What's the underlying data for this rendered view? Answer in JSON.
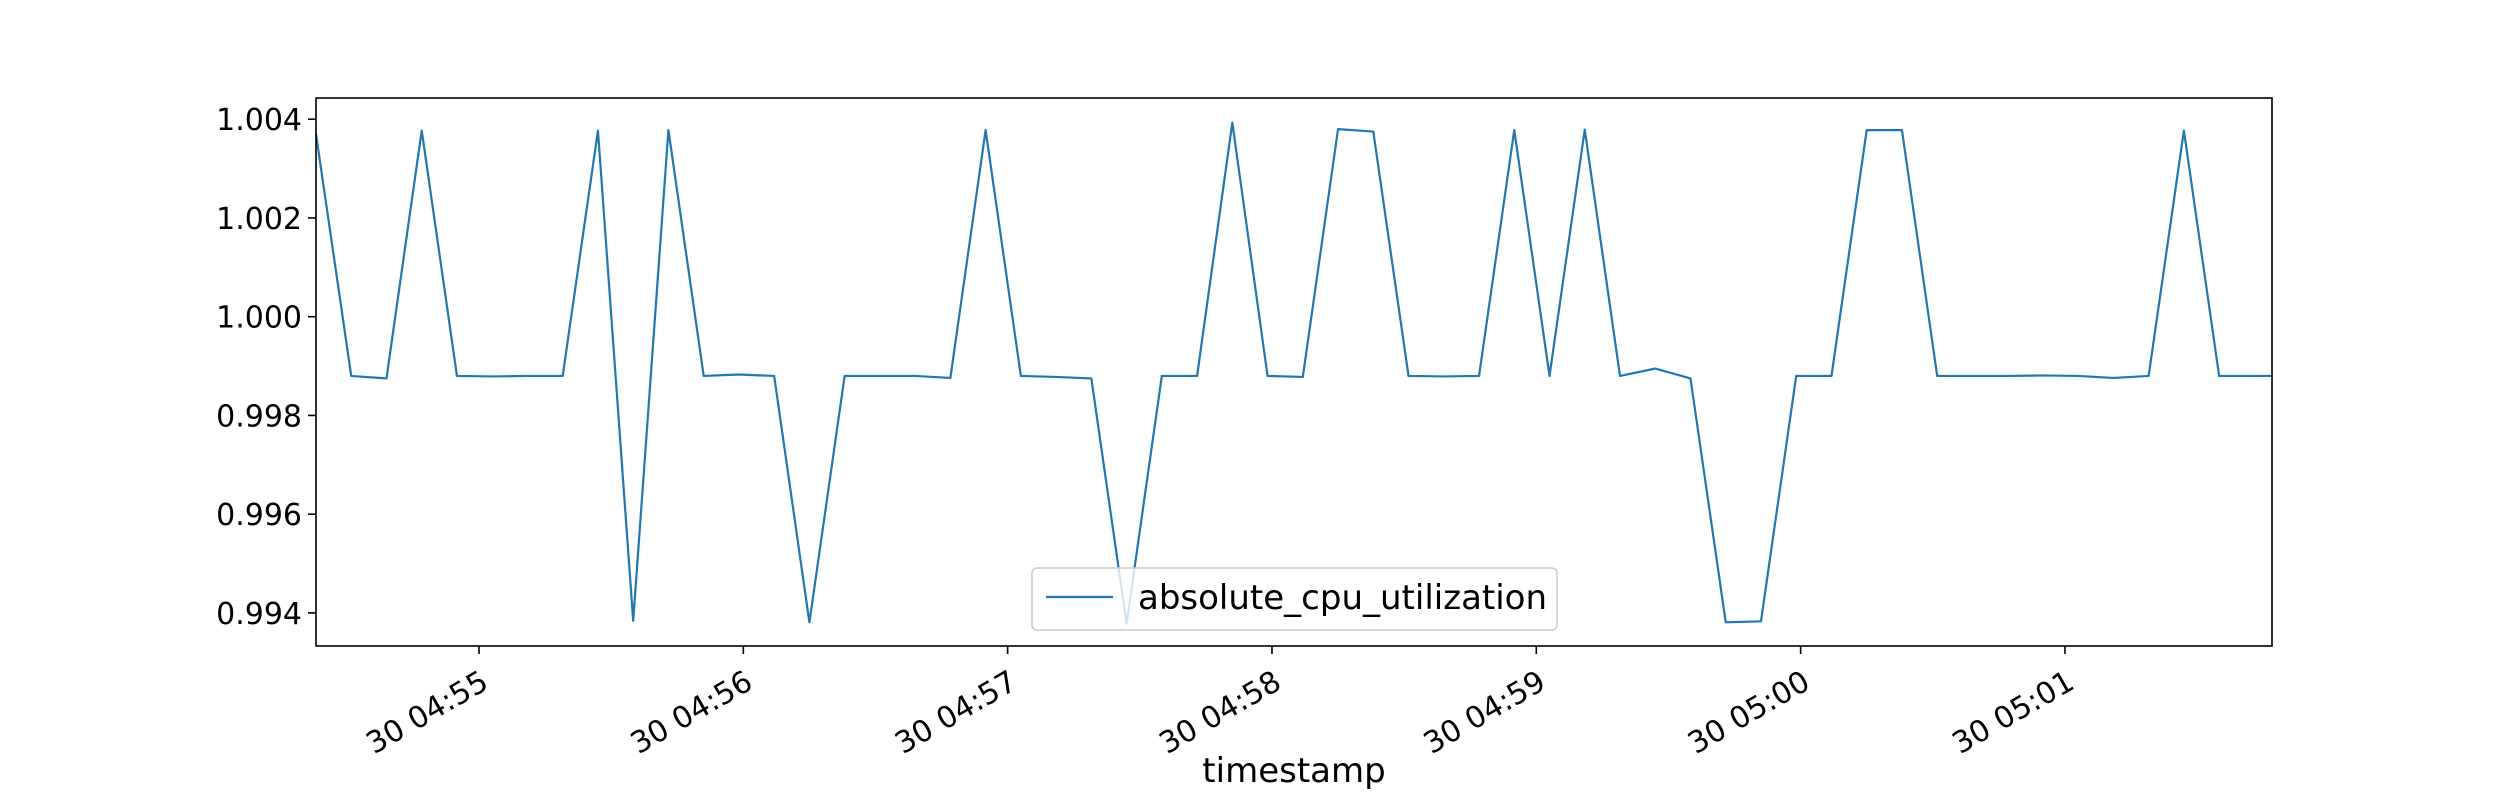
{
  "chart_data": {
    "type": "line",
    "title": "",
    "xlabel": "timestamp",
    "ylabel": "",
    "x_tick_labels": [
      "30 04:55",
      "30 04:56",
      "30 04:57",
      "30 04:58",
      "30 04:59",
      "30 05:00",
      "30 05:01"
    ],
    "x_ticks_seconds": [
      295,
      355,
      415,
      475,
      535,
      595,
      655
    ],
    "y_ticks": [
      0.994,
      0.996,
      0.998,
      1.0,
      1.002,
      1.004
    ],
    "y_tick_labels": [
      "0.994",
      "0.996",
      "0.998",
      "1.000",
      "1.002",
      "1.004"
    ],
    "xlim_seconds": [
      258,
      702
    ],
    "ylim": [
      0.99333,
      1.00443
    ],
    "grid": false,
    "legend_position": "lower-center",
    "series": [
      {
        "name": "absolute_cpu_utilization",
        "color": "#1f77b4",
        "x_seconds": [
          258,
          266,
          274,
          282,
          290,
          298,
          306,
          314,
          322,
          330,
          338,
          346,
          354,
          362,
          370,
          378,
          386,
          394,
          402,
          410,
          418,
          426,
          434,
          442,
          450,
          458,
          466,
          474,
          482,
          490,
          498,
          506,
          514,
          522,
          530,
          538,
          546,
          554,
          562,
          570,
          578,
          586,
          594,
          602,
          610,
          618,
          626,
          634,
          642,
          650,
          658,
          666,
          674,
          682,
          690,
          698,
          702
        ],
        "values": [
          1.0037,
          0.9988,
          0.99875,
          1.00377,
          0.9988,
          0.99879,
          0.9988,
          0.9988,
          1.00377,
          0.99384,
          1.00378,
          0.9988,
          0.99883,
          0.9988,
          0.99381,
          0.9988,
          0.9988,
          0.9988,
          0.99876,
          1.00378,
          0.9988,
          0.99878,
          0.99875,
          0.99378,
          0.9988,
          0.9988,
          1.00393,
          0.9988,
          0.99878,
          1.0038,
          1.00375,
          0.9988,
          0.99879,
          0.9988,
          1.00378,
          0.9988,
          1.00379,
          0.9988,
          0.99895,
          0.99875,
          0.99381,
          0.99383,
          0.9988,
          0.9988,
          1.00378,
          1.00378,
          0.9988,
          0.9988,
          0.9988,
          0.99881,
          0.9988,
          0.99876,
          0.9988,
          1.00377,
          0.9988,
          0.9988,
          0.9988
        ]
      }
    ]
  }
}
